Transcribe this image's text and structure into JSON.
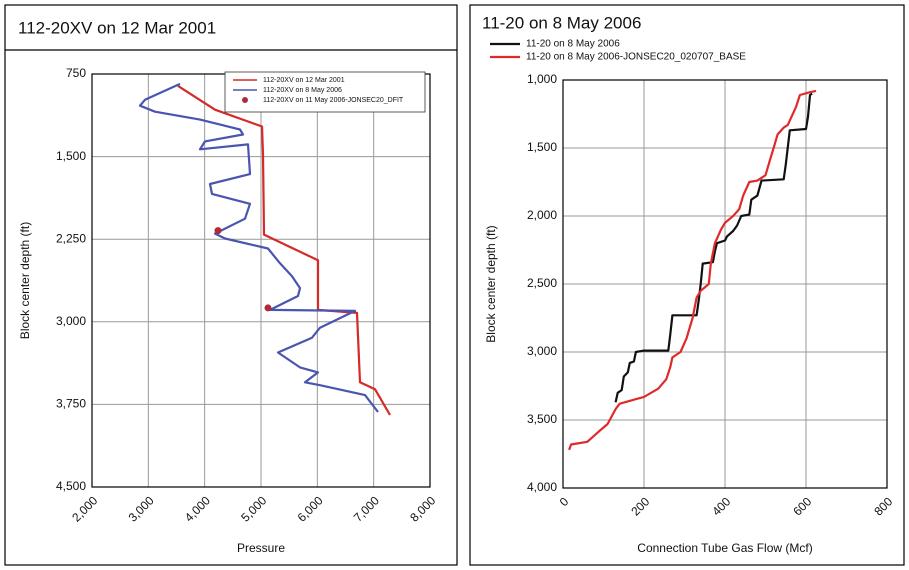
{
  "chart_data": [
    {
      "type": "line",
      "title": "112-20XV on 12 Mar 2001",
      "xlabel": "Pressure",
      "ylabel": "Block center depth (ft)",
      "xlim": [
        2000,
        8000
      ],
      "xticks": [
        {
          "value": 2000,
          "label": "2,000"
        },
        {
          "value": 3000,
          "label": "3,000"
        },
        {
          "value": 4000,
          "label": "4,000"
        },
        {
          "value": 5000,
          "label": "5,000"
        },
        {
          "value": 6000,
          "label": "6,000"
        },
        {
          "value": 7000,
          "label": "7,000"
        },
        {
          "value": 8000,
          "label": "8,000"
        }
      ],
      "ylim": [
        750,
        4500
      ],
      "y_inverted": true,
      "yticks": [
        750,
        {
          "value": 1500,
          "label": "1,500"
        },
        {
          "value": 2250,
          "label": "2,250"
        },
        {
          "value": 3000,
          "label": "3,000"
        },
        {
          "value": 3750,
          "label": "3,750"
        },
        {
          "value": 4500,
          "label": "4,500"
        }
      ],
      "grid": true,
      "legend": "upper right",
      "series": [
        {
          "name": "112-20XV on 12 Mar 2001",
          "color": "#d42a2a",
          "kind": "line",
          "x": [
            3527,
            4184,
            5018,
            5036,
            5053,
            6012,
            6012,
            6705,
            6758,
            7024,
            7290
          ],
          "values": [
            858,
            1074,
            1227,
            1479,
            2208,
            2442,
            2892,
            2919,
            3549,
            3612,
            3846
          ]
        },
        {
          "name": "112-20XV on 8 May 2006",
          "color": "#4a55b0",
          "kind": "line",
          "x": [
            3562,
            2941,
            2852,
            3118,
            3917,
            4627,
            4681,
            4006,
            3917,
            4769,
            4805,
            4095,
            4130,
            4805,
            4716,
            4184,
            4361,
            5124,
            5337,
            5550,
            5692,
            5657,
            5160,
            6669,
            6048,
            5905,
            5302,
            5692,
            6012,
            5781,
            6048,
            6847,
            7077
          ],
          "values": [
            840,
            984,
            1038,
            1092,
            1164,
            1254,
            1299,
            1362,
            1434,
            1389,
            1659,
            1749,
            1839,
            1929,
            2064,
            2199,
            2244,
            2334,
            2469,
            2586,
            2694,
            2766,
            2892,
            2901,
            3054,
            3144,
            3279,
            3414,
            3459,
            3549,
            3576,
            3666,
            3819
          ]
        },
        {
          "name": "112-20XV on 11 May 2006-JONSEC20_DFIT",
          "color": "#b02a3a",
          "kind": "scatter",
          "x": [
            4237,
            5124
          ],
          "values": [
            2172,
            2874
          ]
        }
      ]
    },
    {
      "type": "line",
      "title": "11-20 on 8 May 2006",
      "xlabel": "Connection Tube Gas Flow (Mcf)",
      "ylabel": "Block center depth (ft)",
      "xlim": [
        0,
        800
      ],
      "xticks": [
        0,
        200,
        400,
        600,
        800
      ],
      "ylim": [
        1000,
        4000
      ],
      "y_inverted": true,
      "yticks": [
        {
          "value": 1000,
          "label": "1,000"
        },
        {
          "value": 1500,
          "label": "1,500"
        },
        {
          "value": 2000,
          "label": "2,000"
        },
        {
          "value": 2500,
          "label": "2,500"
        },
        {
          "value": 3000,
          "label": "3,000"
        },
        {
          "value": 3500,
          "label": "3,500"
        },
        {
          "value": 4000,
          "label": "4,000"
        }
      ],
      "grid": true,
      "legend": "top left outside",
      "series": [
        {
          "name": "11-20 on 8 May 2006",
          "color": "#111111",
          "kind": "line",
          "x": [
            130,
            135,
            145,
            150,
            160,
            165,
            175,
            180,
            200,
            260,
            265,
            270,
            330,
            335,
            340,
            345,
            370,
            375,
            380,
            400,
            405,
            420,
            430,
            440,
            460,
            465,
            480,
            490,
            545,
            550,
            560,
            600,
            605,
            610,
            615
          ],
          "values": [
            3370,
            3300,
            3280,
            3180,
            3150,
            3080,
            3070,
            3000,
            2990,
            2990,
            2870,
            2730,
            2730,
            2620,
            2500,
            2350,
            2340,
            2260,
            2200,
            2180,
            2150,
            2110,
            2070,
            2000,
            1990,
            1880,
            1850,
            1740,
            1730,
            1620,
            1370,
            1360,
            1270,
            1110,
            1100
          ]
        },
        {
          "name": "11-20 on 8 May 2006-JONSEC20_020707_BASE",
          "color": "#e02a2a",
          "kind": "line",
          "x": [
            15,
            20,
            60,
            90,
            110,
            130,
            140,
            200,
            235,
            255,
            265,
            270,
            290,
            305,
            320,
            330,
            340,
            360,
            365,
            375,
            390,
            400,
            420,
            435,
            445,
            460,
            480,
            500,
            510,
            520,
            530,
            545,
            555,
            575,
            585,
            610,
            625
          ],
          "values": [
            3720,
            3680,
            3660,
            3580,
            3530,
            3420,
            3380,
            3330,
            3270,
            3200,
            3110,
            3040,
            3000,
            2900,
            2750,
            2600,
            2550,
            2500,
            2350,
            2200,
            2100,
            2050,
            2000,
            1950,
            1850,
            1750,
            1740,
            1700,
            1600,
            1500,
            1400,
            1350,
            1330,
            1200,
            1110,
            1090,
            1080
          ]
        }
      ]
    }
  ]
}
